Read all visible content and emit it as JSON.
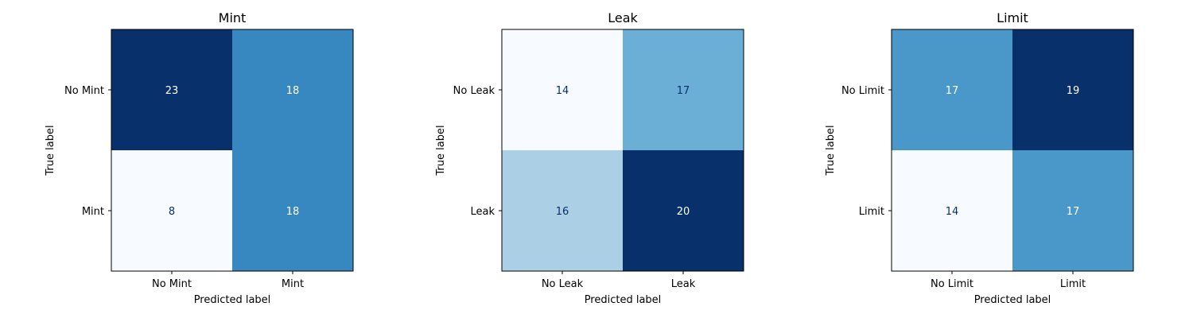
{
  "chart_data": [
    {
      "type": "heatmap",
      "title": "Mint",
      "xlabel": "Predicted label",
      "ylabel": "True label",
      "x_categories": [
        "No Mint",
        "Mint"
      ],
      "y_categories": [
        "No Mint",
        "Mint"
      ],
      "matrix": [
        [
          23,
          18
        ],
        [
          8,
          18
        ]
      ],
      "colormap": "Blues"
    },
    {
      "type": "heatmap",
      "title": "Leak",
      "xlabel": "Predicted label",
      "ylabel": "True label",
      "x_categories": [
        "No Leak",
        "Leak"
      ],
      "y_categories": [
        "No Leak",
        "Leak"
      ],
      "matrix": [
        [
          14,
          17
        ],
        [
          16,
          20
        ]
      ],
      "colormap": "Blues"
    },
    {
      "type": "heatmap",
      "title": "Limit",
      "xlabel": "Predicted label",
      "ylabel": "True label",
      "x_categories": [
        "No Limit",
        "Limit"
      ],
      "y_categories": [
        "No Limit",
        "Limit"
      ],
      "matrix": [
        [
          17,
          19
        ],
        [
          14,
          17
        ]
      ],
      "colormap": "Blues"
    }
  ]
}
